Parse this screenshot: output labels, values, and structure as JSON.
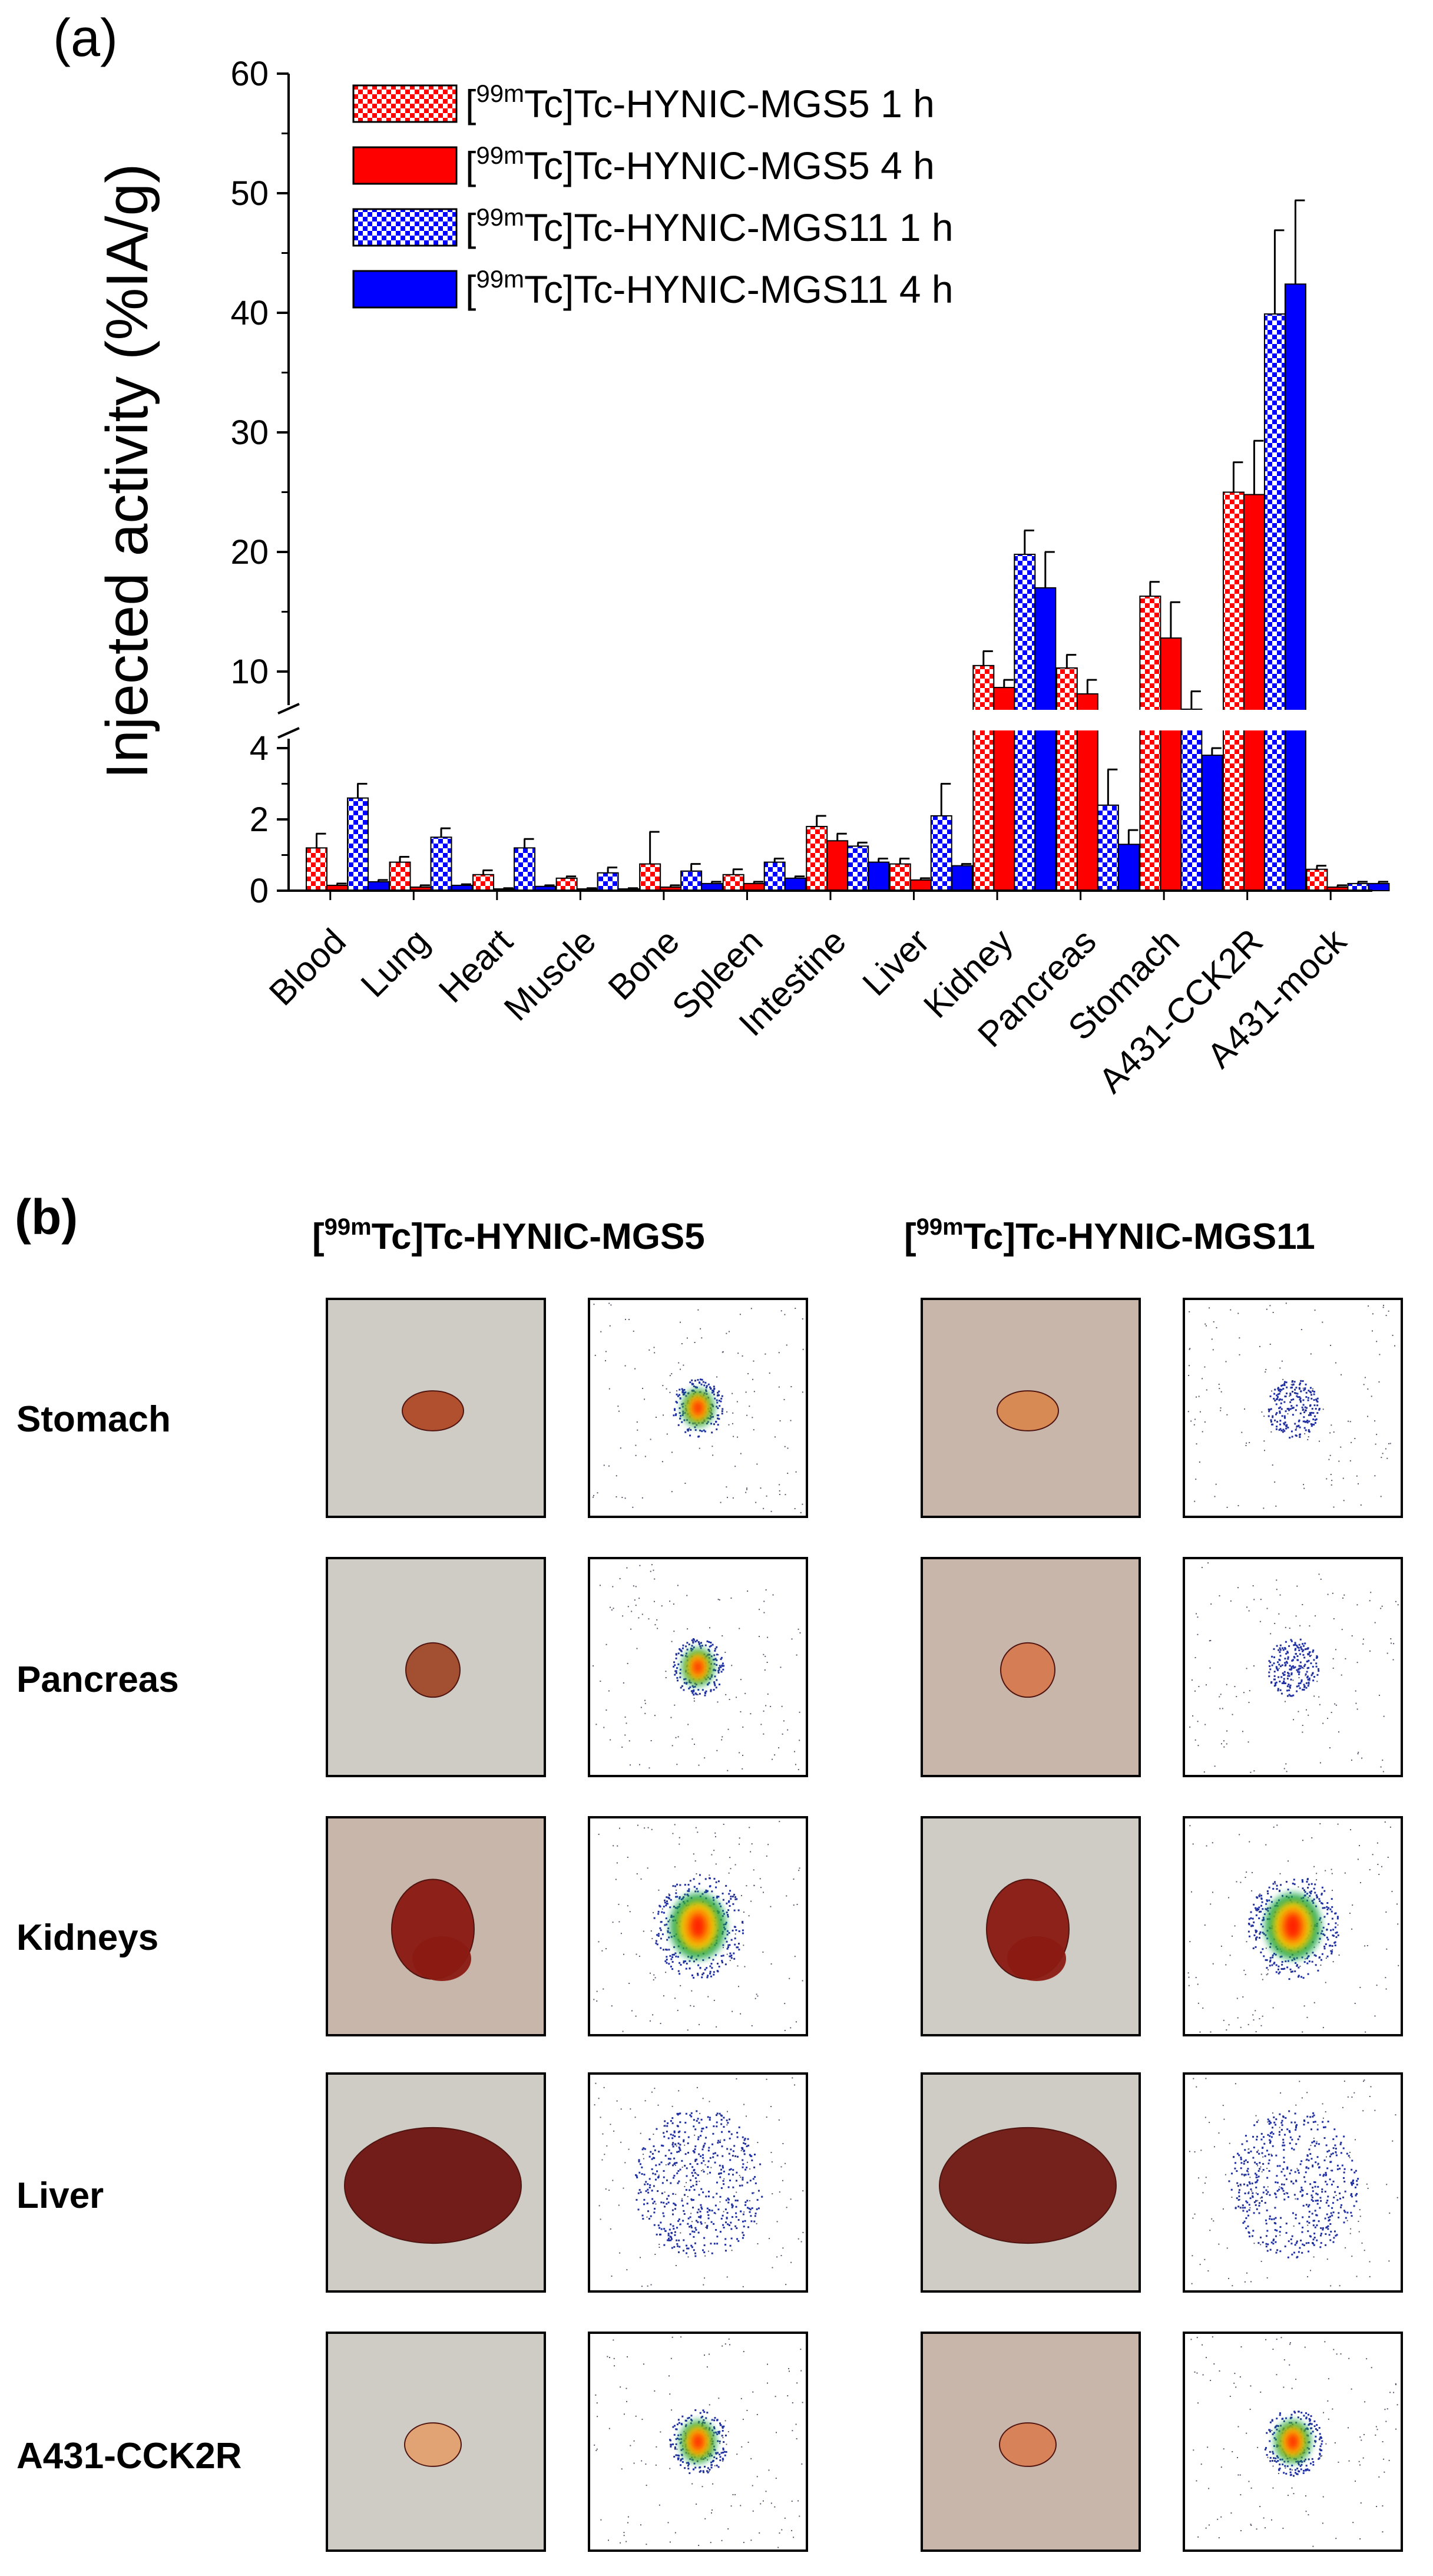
{
  "panel_a": {
    "label": "(a)"
  },
  "chart_data": {
    "type": "bar",
    "title": "",
    "xlabel": "",
    "ylabel": "Injected activity (%IA/g)",
    "axis_break": {
      "lower_range": [
        0,
        4
      ],
      "upper_range": [
        4,
        60
      ]
    },
    "ylim": [
      0,
      60
    ],
    "lower_ticks": [
      0,
      2,
      4
    ],
    "upper_ticks": [
      10,
      20,
      30,
      40,
      50,
      60
    ],
    "categories": [
      "Blood",
      "Lung",
      "Heart",
      "Muscle",
      "Bone",
      "Spleen",
      "Intestine",
      "Liver",
      "Kidney",
      "Pancreas",
      "Stomach",
      "A431-CCK2R",
      "A431-mock"
    ],
    "legend_placement": "top-center",
    "series": [
      {
        "name": "[99mTc]Tc-HYNIC-MGS5 1 h",
        "sup": "99m",
        "pre": "[",
        "post": "Tc]Tc-HYNIC-MGS5   1 h",
        "color": "#ff0000",
        "pattern": "checker",
        "values": [
          1.2,
          0.8,
          0.45,
          0.35,
          0.75,
          0.45,
          1.8,
          0.75,
          10.5,
          10.3,
          16.3,
          25.0,
          0.6
        ],
        "errors": [
          0.4,
          0.15,
          0.12,
          0.05,
          0.9,
          0.15,
          0.3,
          0.15,
          1.2,
          1.1,
          1.2,
          2.5,
          0.1
        ]
      },
      {
        "name": "[99mTc]Tc-HYNIC-MGS5 4 h",
        "sup": "99m",
        "pre": "[",
        "post": "Tc]Tc-HYNIC-MGS5   4 h",
        "color": "#ff0000",
        "pattern": "solid",
        "values": [
          0.15,
          0.1,
          0.05,
          0.05,
          0.1,
          0.2,
          1.4,
          0.3,
          7.5,
          6.5,
          12.8,
          24.8,
          0.1
        ],
        "errors": [
          0.05,
          0.05,
          0.02,
          0.02,
          0.05,
          0.05,
          0.2,
          0.05,
          1.2,
          2.2,
          3.0,
          4.5,
          0.05
        ]
      },
      {
        "name": "[99mTc]Tc-HYNIC-MGS11 1 h",
        "sup": "99m",
        "pre": "[",
        "post": "Tc]Tc-HYNIC-MGS11 1 h",
        "color": "#0000ff",
        "pattern": "checker",
        "values": [
          2.6,
          1.5,
          1.2,
          0.5,
          0.55,
          0.8,
          1.25,
          2.1,
          19.8,
          2.4,
          4.1,
          39.9,
          0.2
        ],
        "errors": [
          0.4,
          0.25,
          0.25,
          0.15,
          0.2,
          0.1,
          0.1,
          0.9,
          2.0,
          1.0,
          2.8,
          7.0,
          0.05
        ]
      },
      {
        "name": "[99mTc]Tc-HYNIC-MGS11 4 h",
        "sup": "99m",
        "pre": "[",
        "post": "Tc]Tc-HYNIC-MGS11 4 h",
        "color": "#0000ff",
        "pattern": "solid",
        "values": [
          0.25,
          0.15,
          0.12,
          0.05,
          0.2,
          0.35,
          0.8,
          0.7,
          17.0,
          1.3,
          3.8,
          42.4,
          0.2
        ],
        "errors": [
          0.05,
          0.03,
          0.03,
          0.02,
          0.05,
          0.05,
          0.1,
          0.05,
          3.0,
          0.4,
          0.2,
          7.0,
          0.05
        ]
      }
    ]
  },
  "panel_b": {
    "label": "(b)",
    "compound_headers": [
      {
        "pre": "[",
        "sup": "99m",
        "post": "Tc]Tc-HYNIC-MGS5"
      },
      {
        "pre": "[",
        "sup": "99m",
        "post": "Tc]Tc-HYNIC-MGS11"
      }
    ],
    "rows": [
      "Stomach",
      "Pancreas",
      "Kidneys",
      "Liver",
      "A431-CCK2R"
    ]
  },
  "colors": {
    "hot_red": "#ff2000",
    "hot_orange": "#ff9000",
    "hot_yellow": "#ffd000",
    "hot_green": "#10a040",
    "cold_blue": "#2030a0",
    "photo_bg_grey": "#cfcbc5",
    "photo_bg_brown": "#c9b6aa",
    "organ_red": "#8a1a12",
    "organ_tan": "#e2a070"
  }
}
